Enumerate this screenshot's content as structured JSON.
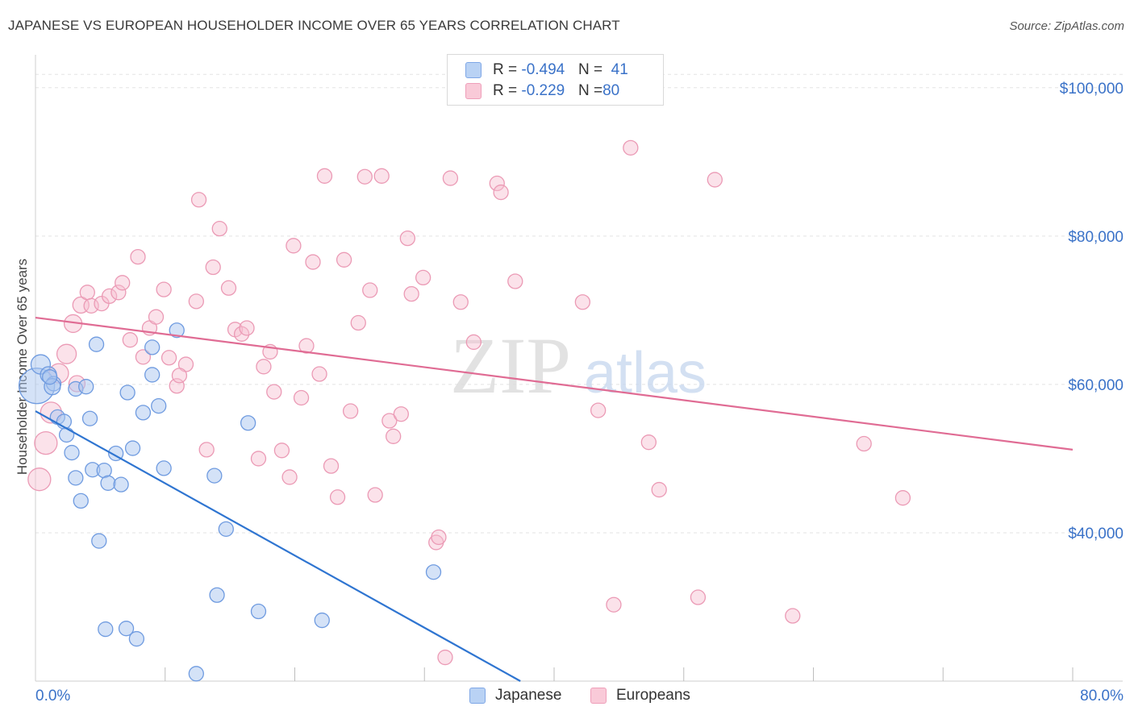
{
  "title": "JAPANESE VS EUROPEAN HOUSEHOLDER INCOME OVER 65 YEARS CORRELATION CHART",
  "source": "Source: ZipAtlas.com",
  "watermark": {
    "zip": "ZIP",
    "atlas": "atlas"
  },
  "legend_top": [
    {
      "r_label": "R = ",
      "r_value": "-0.494",
      "n_label": "N = ",
      "n_value": "41"
    },
    {
      "r_label": "R = ",
      "r_value": "-0.229",
      "n_label": "N = ",
      "n_value": "80"
    }
  ],
  "colors": {
    "japanese_fill": "#a9c6f0",
    "japanese_stroke": "#6f9be0",
    "japanese_line": "#2f75d1",
    "european_fill": "#f7bfd0",
    "european_stroke": "#eb9ab5",
    "european_line": "#e06c94",
    "tick_label": "#3a72c8",
    "grid": "#e3e3e3"
  },
  "chart_data": {
    "type": "scatter",
    "title": "JAPANESE VS EUROPEAN HOUSEHOLDER INCOME OVER 65 YEARS CORRELATION CHART",
    "xlabel": "",
    "ylabel": "Householder Income Over 65 years",
    "xlim": [
      0,
      80
    ],
    "ylim": [
      20000,
      104000
    ],
    "x_tick_labels": [
      "0.0%",
      "80.0%"
    ],
    "y_ticks": [
      40000,
      60000,
      80000,
      100000
    ],
    "y_tick_labels": [
      "$40,000",
      "$60,000",
      "$80,000",
      "$100,000"
    ],
    "legend": [
      "Japanese",
      "Europeans"
    ],
    "series": [
      {
        "name": "Japanese",
        "r": -0.494,
        "n": 41,
        "trend": {
          "x0": 0,
          "y0": 56400,
          "x1": 37.4,
          "y1": 20000
        },
        "points": [
          [
            0.1,
            59800,
            22
          ],
          [
            0.4,
            62700,
            12
          ],
          [
            1.0,
            61300,
            10
          ],
          [
            1.4,
            60100,
            9
          ],
          [
            1.3,
            59700,
            10
          ],
          [
            1.7,
            55600,
            9
          ],
          [
            2.2,
            55000,
            9
          ],
          [
            2.4,
            53200,
            9
          ],
          [
            2.8,
            50800,
            9
          ],
          [
            3.1,
            47400,
            9
          ],
          [
            3.5,
            44300,
            9
          ],
          [
            3.1,
            59400,
            9
          ],
          [
            3.9,
            59700,
            9
          ],
          [
            4.2,
            55400,
            9
          ],
          [
            4.4,
            48500,
            9
          ],
          [
            4.7,
            65400,
            9
          ],
          [
            4.9,
            38900,
            9
          ],
          [
            5.3,
            48400,
            9
          ],
          [
            5.6,
            46700,
            9
          ],
          [
            6.2,
            50700,
            9
          ],
          [
            6.6,
            46500,
            9
          ],
          [
            7.1,
            58900,
            9
          ],
          [
            7.5,
            51400,
            9
          ],
          [
            8.3,
            56200,
            9
          ],
          [
            9.0,
            65000,
            9
          ],
          [
            9.0,
            61300,
            9
          ],
          [
            9.5,
            57100,
            9
          ],
          [
            9.9,
            48700,
            9
          ],
          [
            10.9,
            67300,
            9
          ],
          [
            13.8,
            47700,
            9
          ],
          [
            14.7,
            40500,
            9
          ],
          [
            16.4,
            54800,
            9
          ],
          [
            17.2,
            29400,
            9
          ],
          [
            22.1,
            28200,
            9
          ],
          [
            30.7,
            34700,
            9
          ],
          [
            14.0,
            31600,
            9
          ],
          [
            5.4,
            27000,
            9
          ],
          [
            7.0,
            27100,
            9
          ],
          [
            7.8,
            25700,
            9
          ],
          [
            12.4,
            21000,
            9
          ],
          [
            1.1,
            61000,
            9
          ]
        ]
      },
      {
        "name": "Europeans",
        "r": -0.229,
        "n": 80,
        "trend": {
          "x0": 0,
          "y0": 69000,
          "x1": 80,
          "y1": 51200
        },
        "points": [
          [
            0.3,
            47200,
            14
          ],
          [
            0.8,
            52100,
            14
          ],
          [
            1.2,
            56200,
            13
          ],
          [
            1.8,
            61500,
            12
          ],
          [
            2.4,
            64100,
            12
          ],
          [
            2.9,
            68200,
            11
          ],
          [
            3.2,
            60100,
            10
          ],
          [
            3.5,
            70700,
            10
          ],
          [
            4.0,
            72400,
            9
          ],
          [
            4.3,
            70600,
            9
          ],
          [
            5.1,
            70900,
            9
          ],
          [
            5.7,
            71900,
            9
          ],
          [
            6.4,
            72400,
            9
          ],
          [
            6.7,
            73700,
            9
          ],
          [
            7.3,
            66000,
            9
          ],
          [
            7.9,
            77200,
            9
          ],
          [
            8.3,
            63700,
            9
          ],
          [
            8.8,
            67600,
            9
          ],
          [
            9.3,
            69100,
            9
          ],
          [
            9.9,
            72800,
            9
          ],
          [
            10.3,
            63600,
            9
          ],
          [
            10.9,
            59800,
            9
          ],
          [
            11.6,
            62700,
            9
          ],
          [
            11.1,
            61200,
            9
          ],
          [
            12.4,
            71200,
            9
          ],
          [
            12.6,
            84900,
            9
          ],
          [
            13.2,
            51200,
            9
          ],
          [
            13.7,
            75800,
            9
          ],
          [
            14.2,
            81000,
            9
          ],
          [
            14.9,
            73000,
            9
          ],
          [
            15.4,
            67400,
            9
          ],
          [
            15.9,
            66800,
            9
          ],
          [
            16.3,
            67600,
            9
          ],
          [
            17.2,
            50000,
            9
          ],
          [
            17.6,
            62400,
            9
          ],
          [
            18.1,
            64400,
            9
          ],
          [
            18.4,
            59000,
            9
          ],
          [
            19.0,
            51100,
            9
          ],
          [
            19.6,
            47500,
            9
          ],
          [
            19.9,
            78700,
            9
          ],
          [
            20.5,
            58200,
            9
          ],
          [
            20.9,
            65200,
            9
          ],
          [
            21.4,
            76500,
            9
          ],
          [
            21.9,
            61400,
            9
          ],
          [
            22.3,
            88100,
            9
          ],
          [
            22.8,
            49000,
            9
          ],
          [
            23.3,
            44800,
            9
          ],
          [
            23.8,
            76800,
            9
          ],
          [
            24.3,
            56400,
            9
          ],
          [
            24.9,
            68300,
            9
          ],
          [
            25.4,
            88000,
            9
          ],
          [
            25.8,
            72700,
            9
          ],
          [
            26.2,
            45100,
            9
          ],
          [
            26.7,
            88100,
            9
          ],
          [
            27.3,
            55100,
            9
          ],
          [
            27.6,
            53000,
            9
          ],
          [
            28.2,
            56000,
            9
          ],
          [
            28.7,
            79700,
            9
          ],
          [
            29.0,
            72200,
            9
          ],
          [
            29.9,
            74400,
            9
          ],
          [
            30.9,
            38700,
            9
          ],
          [
            31.1,
            39400,
            9
          ],
          [
            32.0,
            87800,
            9
          ],
          [
            32.8,
            71100,
            9
          ],
          [
            33.8,
            65700,
            9
          ],
          [
            35.6,
            87100,
            9
          ],
          [
            35.9,
            85900,
            9
          ],
          [
            37.0,
            73900,
            9
          ],
          [
            42.2,
            71100,
            9
          ],
          [
            43.4,
            56500,
            9
          ],
          [
            44.6,
            30300,
            9
          ],
          [
            45.9,
            91900,
            9
          ],
          [
            47.3,
            52200,
            9
          ],
          [
            48.1,
            45800,
            9
          ],
          [
            51.1,
            31300,
            9
          ],
          [
            52.4,
            87600,
            9
          ],
          [
            58.4,
            28800,
            9
          ],
          [
            63.9,
            52000,
            9
          ],
          [
            66.9,
            44700,
            9
          ],
          [
            31.6,
            23200,
            9
          ]
        ]
      }
    ]
  }
}
